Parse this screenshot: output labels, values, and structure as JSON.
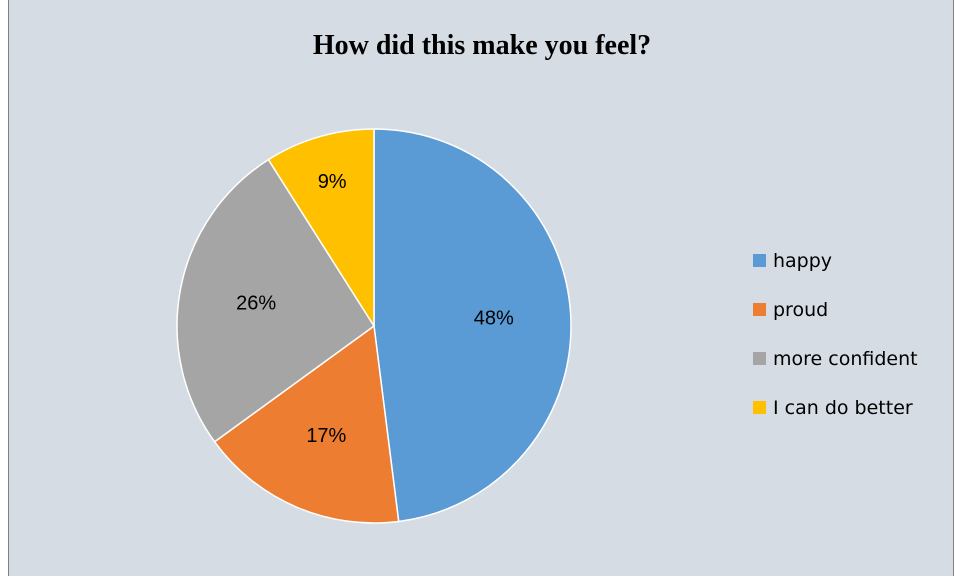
{
  "chart_data": {
    "type": "pie",
    "title": "How did this make you feel?",
    "categories": [
      "happy",
      "proud",
      "more confident",
      "I can do better"
    ],
    "values": [
      48,
      17,
      26,
      9
    ],
    "labels": [
      "48%",
      "17%",
      "26%",
      "9%"
    ],
    "colors": [
      "#5b9bd5",
      "#ed7d31",
      "#a5a5a5",
      "#ffc000"
    ],
    "legend_position": "right"
  }
}
